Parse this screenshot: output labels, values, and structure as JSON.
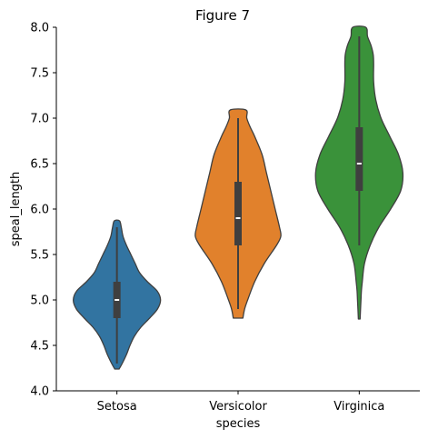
{
  "chart_data": {
    "type": "violin",
    "title": "Figure 7",
    "xlabel": "species",
    "ylabel": "speal_length",
    "ylim": [
      4.0,
      8.0
    ],
    "yticks": [
      "4.0",
      "4.5",
      "5.0",
      "5.5",
      "6.0",
      "6.5",
      "7.0",
      "7.5",
      "8.0"
    ],
    "categories": [
      "Setosa",
      "Versicolor",
      "Virginica"
    ],
    "grid": false,
    "series": [
      {
        "category": "Setosa",
        "color": "#3274a1",
        "min": 4.3,
        "q1": 4.8,
        "median": 5.0,
        "q3": 5.2,
        "max": 5.8,
        "extent": [
          4.24,
          5.87
        ],
        "density": [
          [
            4.24,
            0.05
          ],
          [
            4.3,
            0.12
          ],
          [
            4.4,
            0.22
          ],
          [
            4.5,
            0.3
          ],
          [
            4.6,
            0.4
          ],
          [
            4.7,
            0.55
          ],
          [
            4.8,
            0.75
          ],
          [
            4.9,
            0.93
          ],
          [
            5.0,
            1.0
          ],
          [
            5.1,
            0.92
          ],
          [
            5.2,
            0.7
          ],
          [
            5.3,
            0.52
          ],
          [
            5.4,
            0.42
          ],
          [
            5.5,
            0.32
          ],
          [
            5.6,
            0.22
          ],
          [
            5.7,
            0.14
          ],
          [
            5.8,
            0.1
          ],
          [
            5.87,
            0.06
          ]
        ]
      },
      {
        "category": "Versicolor",
        "color": "#e1812c",
        "min": 4.9,
        "q1": 5.6,
        "median": 5.9,
        "q3": 6.3,
        "max": 7.0,
        "extent": [
          4.8,
          7.09
        ],
        "density": [
          [
            4.8,
            0.11
          ],
          [
            4.9,
            0.15
          ],
          [
            5.0,
            0.22
          ],
          [
            5.2,
            0.38
          ],
          [
            5.4,
            0.6
          ],
          [
            5.6,
            0.88
          ],
          [
            5.7,
            0.98
          ],
          [
            5.8,
            0.95
          ],
          [
            6.0,
            0.85
          ],
          [
            6.2,
            0.75
          ],
          [
            6.4,
            0.65
          ],
          [
            6.6,
            0.55
          ],
          [
            6.8,
            0.38
          ],
          [
            6.9,
            0.28
          ],
          [
            7.0,
            0.2
          ],
          [
            7.09,
            0.18
          ]
        ]
      },
      {
        "category": "Virginica",
        "color": "#3a923a",
        "min": 5.6,
        "q1": 6.2,
        "median": 6.5,
        "q3": 6.9,
        "max": 7.9,
        "extent": [
          4.79,
          8.0
        ],
        "density": [
          [
            4.79,
            0.02
          ],
          [
            4.9,
            0.03
          ],
          [
            5.0,
            0.04
          ],
          [
            5.1,
            0.05
          ],
          [
            5.2,
            0.07
          ],
          [
            5.4,
            0.12
          ],
          [
            5.6,
            0.25
          ],
          [
            5.8,
            0.45
          ],
          [
            6.0,
            0.72
          ],
          [
            6.2,
            0.95
          ],
          [
            6.4,
            1.0
          ],
          [
            6.6,
            0.9
          ],
          [
            6.8,
            0.7
          ],
          [
            7.0,
            0.5
          ],
          [
            7.2,
            0.38
          ],
          [
            7.4,
            0.33
          ],
          [
            7.6,
            0.33
          ],
          [
            7.7,
            0.32
          ],
          [
            7.8,
            0.27
          ],
          [
            7.9,
            0.19
          ],
          [
            8.0,
            0.15
          ]
        ]
      }
    ]
  }
}
